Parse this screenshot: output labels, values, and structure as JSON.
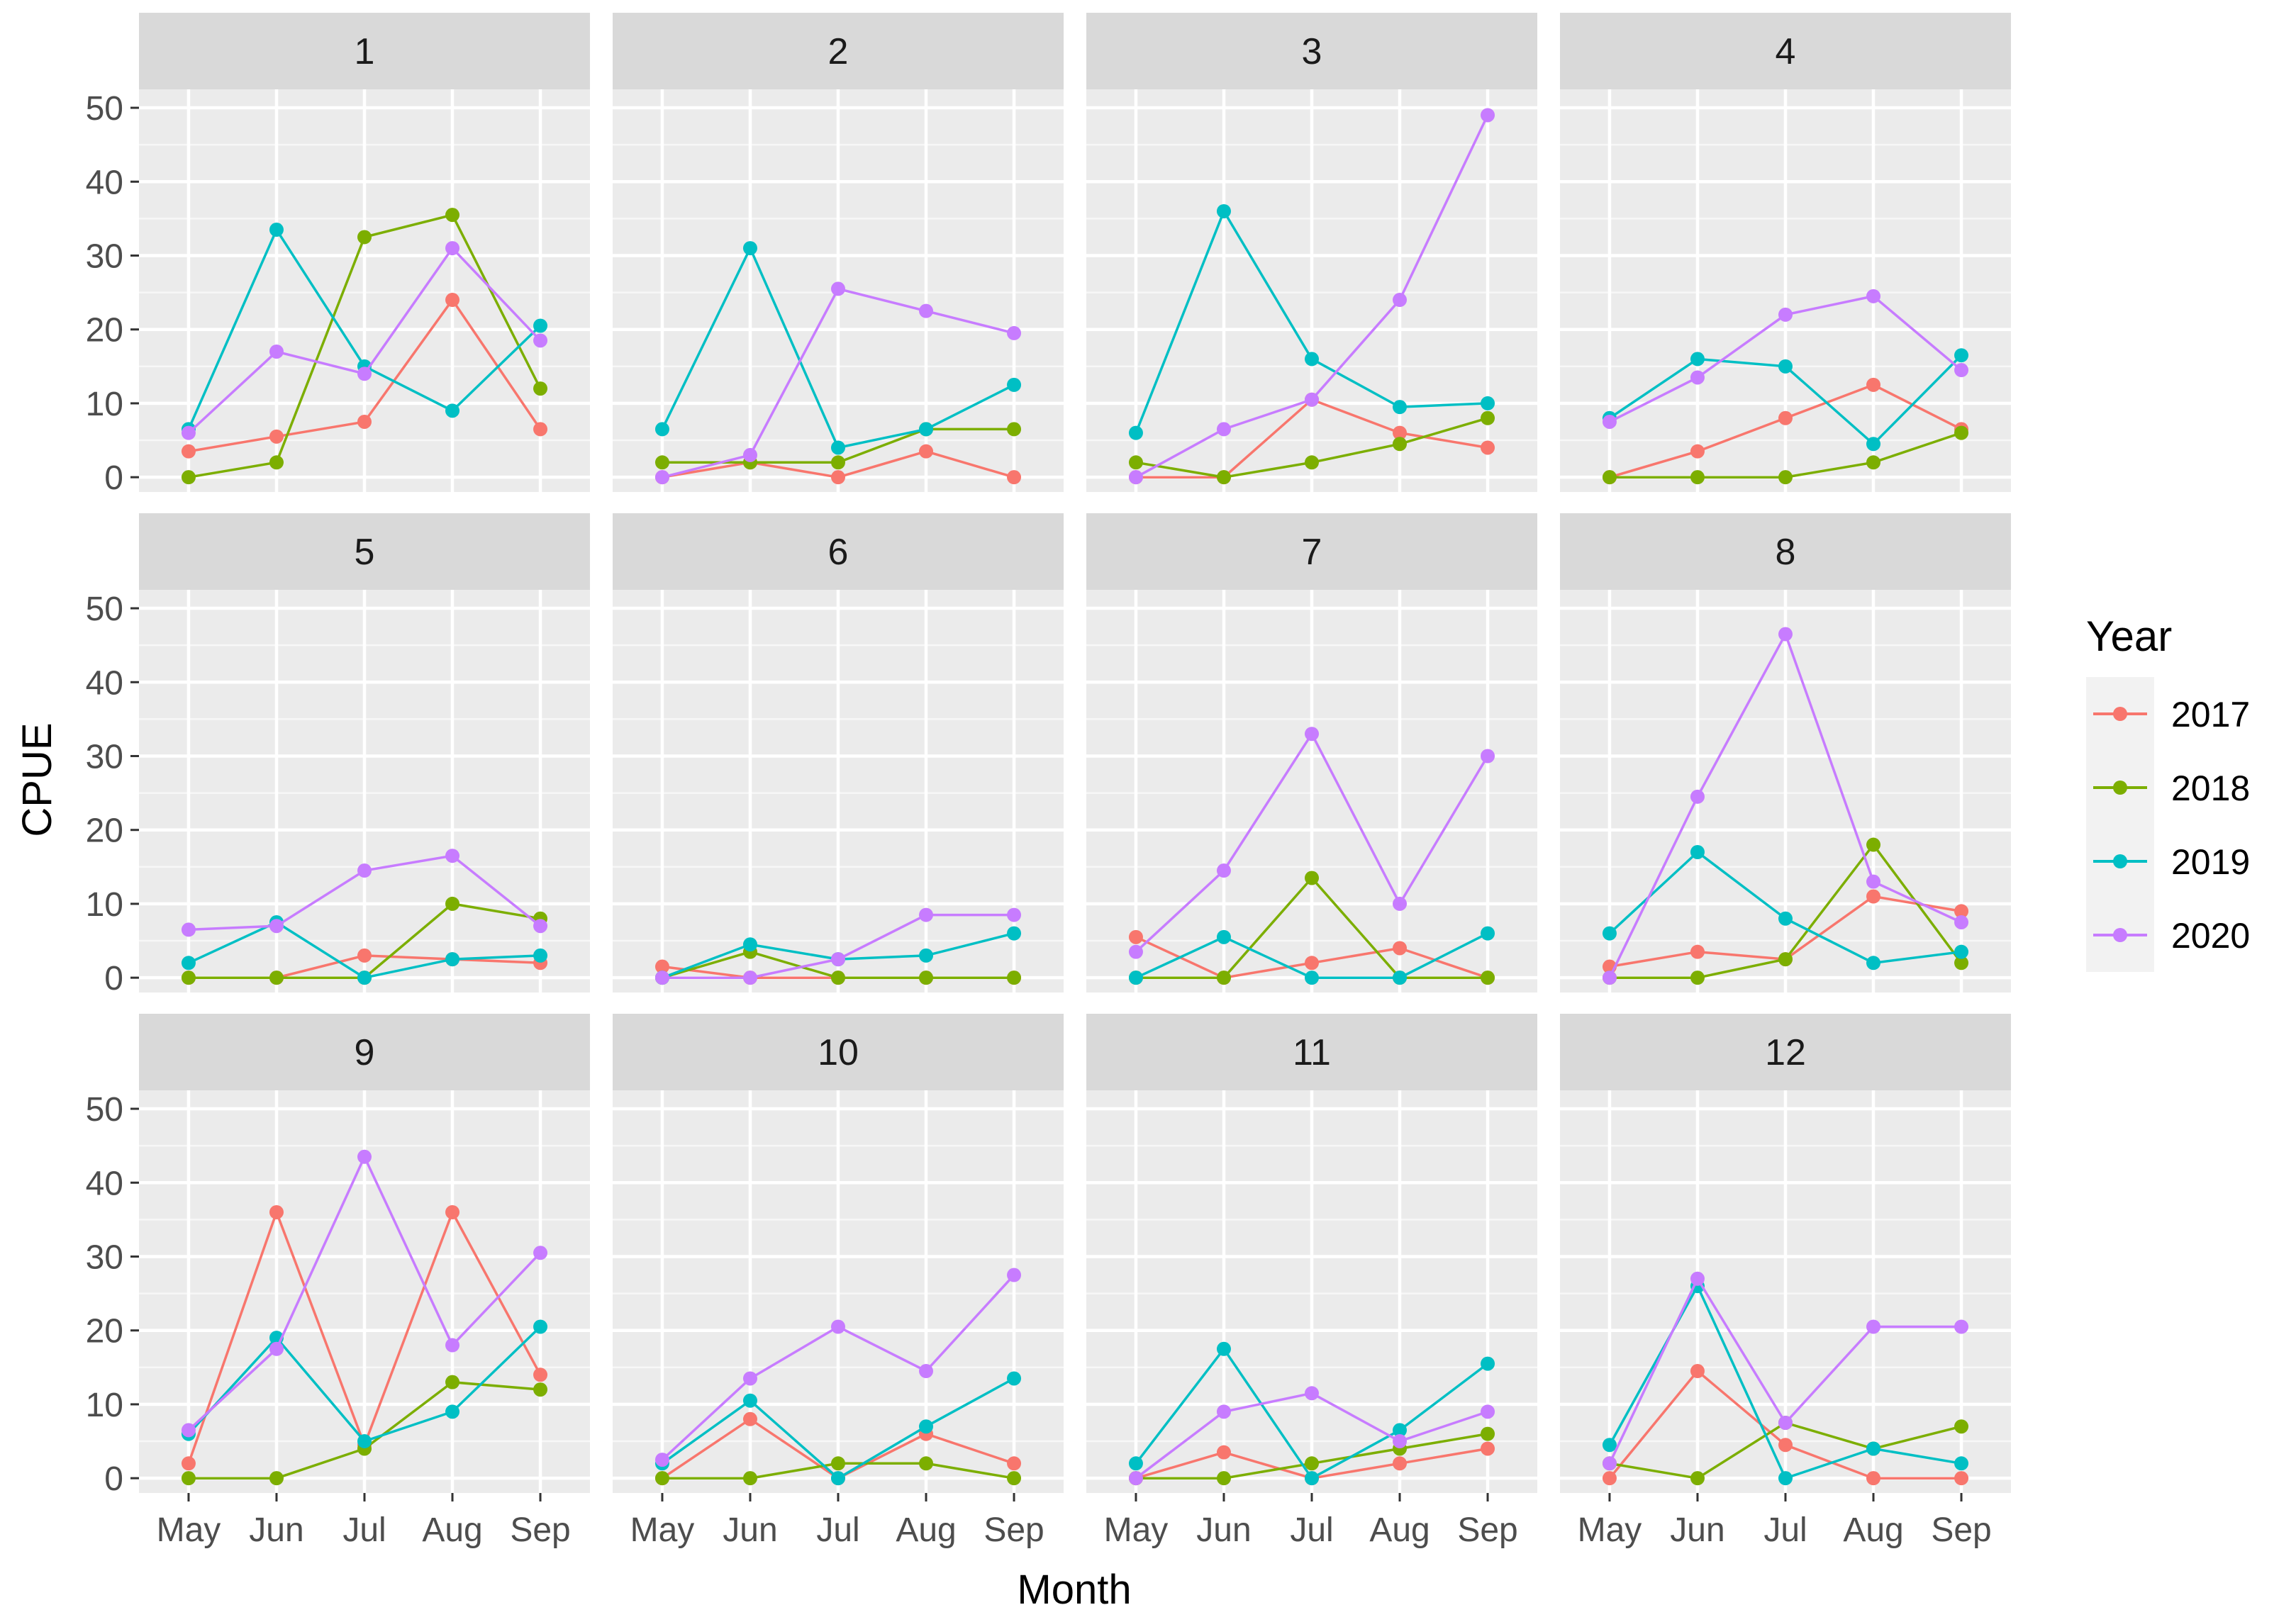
{
  "chart_data": {
    "type": "line",
    "facet_variable": "Site",
    "xlabel": "Month",
    "ylabel": "CPUE",
    "x_categories": [
      "May",
      "Jun",
      "Jul",
      "Aug",
      "Sep"
    ],
    "y_ticks": [
      0,
      10,
      20,
      30,
      40,
      50
    ],
    "ylim": [
      -2,
      52.5
    ],
    "legend": {
      "title": "Year",
      "position": "right",
      "entries": [
        {
          "name": "2017",
          "color": "#F8766D"
        },
        {
          "name": "2018",
          "color": "#7CAE00"
        },
        {
          "name": "2019",
          "color": "#00BFC4"
        },
        {
          "name": "2020",
          "color": "#C77CFF"
        }
      ]
    },
    "facets": [
      {
        "label": "1",
        "series": {
          "2017": [
            3.5,
            5.5,
            7.5,
            24,
            6.5
          ],
          "2018": [
            0,
            2,
            32.5,
            35.5,
            12
          ],
          "2019": [
            6.5,
            33.5,
            15,
            9,
            20.5
          ],
          "2020": [
            6,
            17,
            14,
            31,
            18.5
          ]
        }
      },
      {
        "label": "2",
        "series": {
          "2017": [
            0,
            2,
            0,
            3.5,
            0
          ],
          "2018": [
            2,
            2,
            2,
            6.5,
            6.5
          ],
          "2019": [
            6.5,
            31,
            4,
            6.5,
            12.5
          ],
          "2020": [
            0,
            3,
            25.5,
            22.5,
            19.5
          ]
        }
      },
      {
        "label": "3",
        "series": {
          "2017": [
            0,
            0,
            10.5,
            6,
            4
          ],
          "2018": [
            2,
            0,
            2,
            4.5,
            8
          ],
          "2019": [
            6,
            36,
            16,
            9.5,
            10
          ],
          "2020": [
            0,
            6.5,
            10.5,
            24,
            49
          ]
        }
      },
      {
        "label": "4",
        "series": {
          "2017": [
            0,
            3.5,
            8,
            12.5,
            6.5
          ],
          "2018": [
            0,
            0,
            0,
            2,
            6
          ],
          "2019": [
            8,
            16,
            15,
            4.5,
            16.5
          ],
          "2020": [
            7.5,
            13.5,
            22,
            24.5,
            14.5
          ]
        }
      },
      {
        "label": "5",
        "series": {
          "2017": [
            0,
            0,
            3,
            2.5,
            2
          ],
          "2018": [
            0,
            0,
            0,
            10,
            8
          ],
          "2019": [
            2,
            7.5,
            0,
            2.5,
            3
          ],
          "2020": [
            6.5,
            7,
            14.5,
            16.5,
            7
          ]
        }
      },
      {
        "label": "6",
        "series": {
          "2017": [
            1.5,
            0,
            0,
            0,
            0
          ],
          "2018": [
            0,
            3.5,
            0,
            0,
            0
          ],
          "2019": [
            0,
            4.5,
            2.5,
            3,
            6
          ],
          "2020": [
            0,
            0,
            2.5,
            8.5,
            8.5
          ]
        }
      },
      {
        "label": "7",
        "series": {
          "2017": [
            5.5,
            0,
            2,
            4,
            0
          ],
          "2018": [
            0,
            0,
            13.5,
            0,
            0
          ],
          "2019": [
            0,
            5.5,
            0,
            0,
            6
          ],
          "2020": [
            3.5,
            14.5,
            33,
            10,
            30
          ]
        }
      },
      {
        "label": "8",
        "series": {
          "2017": [
            1.5,
            3.5,
            2.5,
            11,
            9
          ],
          "2018": [
            0,
            0,
            2.5,
            18,
            2
          ],
          "2019": [
            6,
            17,
            8,
            2,
            3.5
          ],
          "2020": [
            0,
            24.5,
            46.5,
            13,
            7.5
          ]
        }
      },
      {
        "label": "9",
        "series": {
          "2017": [
            2,
            36,
            4.5,
            36,
            14
          ],
          "2018": [
            0,
            0,
            4,
            13,
            12
          ],
          "2019": [
            6,
            19,
            5,
            9,
            20.5
          ],
          "2020": [
            6.5,
            17.5,
            43.5,
            18,
            30.5
          ]
        }
      },
      {
        "label": "10",
        "series": {
          "2017": [
            0,
            8,
            0,
            6,
            2
          ],
          "2018": [
            0,
            0,
            2,
            2,
            0
          ],
          "2019": [
            2,
            10.5,
            0,
            7,
            13.5
          ],
          "2020": [
            2.5,
            13.5,
            20.5,
            14.5,
            27.5
          ]
        }
      },
      {
        "label": "11",
        "series": {
          "2017": [
            0,
            3.5,
            0,
            2,
            4
          ],
          "2018": [
            0,
            0,
            2,
            4,
            6
          ],
          "2019": [
            2,
            17.5,
            0,
            6.5,
            15.5
          ],
          "2020": [
            0,
            9,
            11.5,
            5,
            9
          ]
        }
      },
      {
        "label": "12",
        "series": {
          "2017": [
            0,
            14.5,
            4.5,
            0,
            0
          ],
          "2018": [
            2,
            0,
            7.5,
            4,
            7
          ],
          "2019": [
            4.5,
            26,
            0,
            4,
            2
          ],
          "2020": [
            2,
            27,
            7.5,
            20.5,
            20.5
          ]
        }
      }
    ]
  }
}
